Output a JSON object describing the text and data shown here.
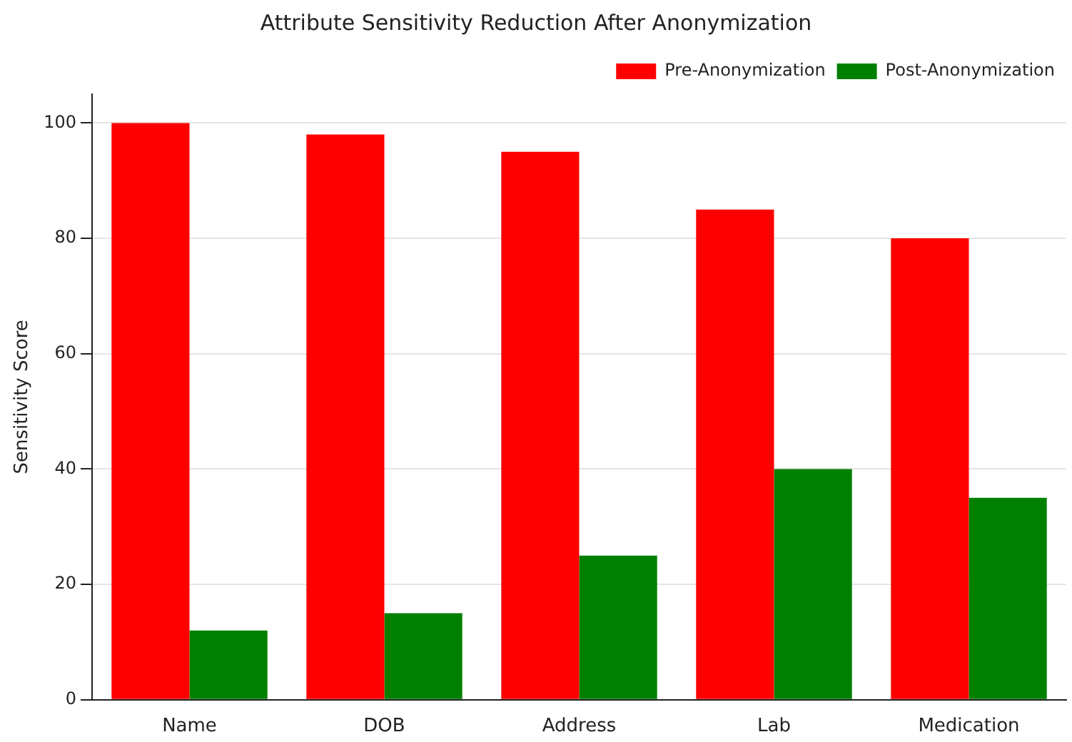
{
  "chart_data": {
    "type": "bar",
    "title": "Attribute Sensitivity Reduction After Anonymization",
    "ylabel": "Sensitivity Score",
    "categories": [
      "Name",
      "DOB",
      "Address",
      "Lab",
      "Medication"
    ],
    "series": [
      {
        "name": "Pre-Anonymization",
        "color": "#ff0000",
        "values": [
          100,
          98,
          95,
          85,
          80
        ]
      },
      {
        "name": "Post-Anonymization",
        "color": "#008000",
        "values": [
          12,
          15,
          25,
          40,
          35
        ]
      }
    ],
    "ylim": [
      0,
      105
    ],
    "yticks": [
      0,
      20,
      40,
      60,
      80,
      100
    ],
    "grid": "y",
    "legend": "top right"
  }
}
